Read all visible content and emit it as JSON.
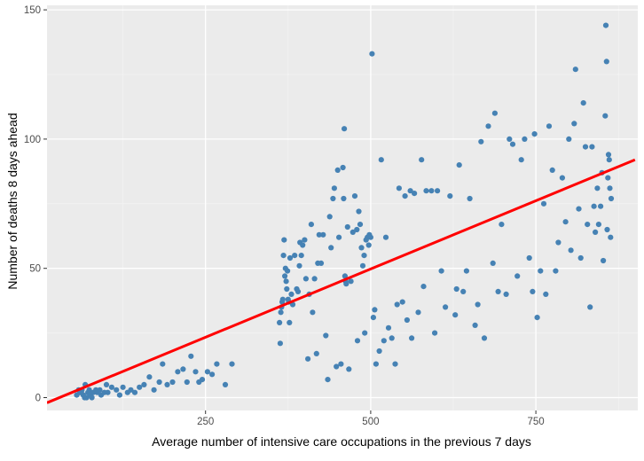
{
  "chart_data": {
    "type": "scatter",
    "title": "",
    "xlabel": "Average number of intensive care occupations in the previous 7 days",
    "ylabel": "Number of deaths 8 days ahead",
    "xlim": [
      10,
      900
    ],
    "ylim": [
      -3,
      150
    ],
    "x_ticks": [
      250,
      500,
      750
    ],
    "y_ticks": [
      0,
      50,
      100,
      150
    ],
    "x_minor_ticks": [
      125,
      375,
      625,
      875
    ],
    "y_minor_ticks": [
      25,
      75,
      125
    ],
    "grid": true,
    "legend": "none",
    "colors": {
      "panel_background": "#EBEBEB",
      "grid_major": "#FFFFFF",
      "grid_minor": "#F4F4F4",
      "points": "#4682B4",
      "fit_line": "#FF0000",
      "axis_text": "#4D4D4D",
      "axis_title": "#000000"
    },
    "fit_line": {
      "type": "linear",
      "points": [
        [
          10,
          -2
        ],
        [
          900,
          92
        ]
      ]
    },
    "series": [
      {
        "values": [
          [
            55,
            1
          ],
          [
            58,
            3
          ],
          [
            60,
            2
          ],
          [
            62,
            2
          ],
          [
            63,
            3
          ],
          [
            65,
            1
          ],
          [
            67,
            0
          ],
          [
            68,
            5
          ],
          [
            70,
            0
          ],
          [
            72,
            2
          ],
          [
            74,
            3
          ],
          [
            76,
            1
          ],
          [
            78,
            0
          ],
          [
            80,
            2
          ],
          [
            84,
            3
          ],
          [
            86,
            2
          ],
          [
            90,
            3
          ],
          [
            92,
            1
          ],
          [
            97,
            2
          ],
          [
            100,
            5
          ],
          [
            102,
            2
          ],
          [
            108,
            4
          ],
          [
            115,
            3
          ],
          [
            120,
            1
          ],
          [
            125,
            4
          ],
          [
            132,
            2
          ],
          [
            137,
            3
          ],
          [
            143,
            2
          ],
          [
            150,
            4
          ],
          [
            157,
            5
          ],
          [
            165,
            8
          ],
          [
            172,
            3
          ],
          [
            180,
            6
          ],
          [
            185,
            13
          ],
          [
            192,
            5
          ],
          [
            200,
            6
          ],
          [
            208,
            10
          ],
          [
            216,
            11
          ],
          [
            222,
            6
          ],
          [
            228,
            16
          ],
          [
            235,
            10
          ],
          [
            240,
            6
          ],
          [
            245,
            7
          ],
          [
            253,
            10
          ],
          [
            260,
            9
          ],
          [
            267,
            13
          ],
          [
            280,
            5
          ],
          [
            290,
            13
          ],
          [
            362,
            29
          ],
          [
            363,
            21
          ],
          [
            364,
            33
          ],
          [
            365,
            35
          ],
          [
            366,
            37
          ],
          [
            367,
            38
          ],
          [
            368,
            55
          ],
          [
            369,
            61
          ],
          [
            370,
            47
          ],
          [
            371,
            50
          ],
          [
            372,
            45
          ],
          [
            373,
            42
          ],
          [
            374,
            49
          ],
          [
            375,
            38
          ],
          [
            376,
            37
          ],
          [
            377,
            29
          ],
          [
            378,
            54
          ],
          [
            380,
            40
          ],
          [
            382,
            36
          ],
          [
            385,
            55
          ],
          [
            388,
            42
          ],
          [
            390,
            41
          ],
          [
            392,
            51
          ],
          [
            393,
            60
          ],
          [
            395,
            55
          ],
          [
            397,
            59
          ],
          [
            400,
            61
          ],
          [
            402,
            46
          ],
          [
            405,
            15
          ],
          [
            407,
            40
          ],
          [
            410,
            67
          ],
          [
            412,
            33
          ],
          [
            415,
            46
          ],
          [
            418,
            17
          ],
          [
            420,
            52
          ],
          [
            422,
            63
          ],
          [
            425,
            52
          ],
          [
            428,
            63
          ],
          [
            432,
            24
          ],
          [
            435,
            7
          ],
          [
            438,
            70
          ],
          [
            440,
            58
          ],
          [
            443,
            77
          ],
          [
            445,
            81
          ],
          [
            448,
            12
          ],
          [
            450,
            88
          ],
          [
            452,
            62
          ],
          [
            455,
            13
          ],
          [
            458,
            89
          ],
          [
            459,
            77
          ],
          [
            460,
            104
          ],
          [
            461,
            47
          ],
          [
            462,
            45
          ],
          [
            463,
            44
          ],
          [
            465,
            66
          ],
          [
            467,
            11
          ],
          [
            470,
            45
          ],
          [
            473,
            64
          ],
          [
            476,
            78
          ],
          [
            479,
            65
          ],
          [
            480,
            22
          ],
          [
            482,
            72
          ],
          [
            484,
            67
          ],
          [
            486,
            58
          ],
          [
            488,
            51
          ],
          [
            490,
            55
          ],
          [
            491,
            25
          ],
          [
            493,
            61
          ],
          [
            495,
            62
          ],
          [
            497,
            59
          ],
          [
            498,
            63
          ],
          [
            500,
            62
          ],
          [
            502,
            133
          ],
          [
            504,
            31
          ],
          [
            506,
            34
          ],
          [
            508,
            13
          ],
          [
            513,
            18
          ],
          [
            516,
            92
          ],
          [
            520,
            22
          ],
          [
            523,
            62
          ],
          [
            527,
            27
          ],
          [
            532,
            23
          ],
          [
            537,
            13
          ],
          [
            540,
            36
          ],
          [
            543,
            81
          ],
          [
            548,
            37
          ],
          [
            552,
            78
          ],
          [
            555,
            30
          ],
          [
            560,
            80
          ],
          [
            562,
            23
          ],
          [
            566,
            79
          ],
          [
            572,
            33
          ],
          [
            577,
            92
          ],
          [
            580,
            43
          ],
          [
            584,
            80
          ],
          [
            592,
            80
          ],
          [
            597,
            25
          ],
          [
            601,
            80
          ],
          [
            607,
            49
          ],
          [
            613,
            35
          ],
          [
            620,
            78
          ],
          [
            628,
            32
          ],
          [
            630,
            42
          ],
          [
            634,
            90
          ],
          [
            640,
            41
          ],
          [
            645,
            49
          ],
          [
            650,
            77
          ],
          [
            658,
            28
          ],
          [
            662,
            36
          ],
          [
            667,
            99
          ],
          [
            672,
            23
          ],
          [
            678,
            105
          ],
          [
            685,
            52
          ],
          [
            688,
            110
          ],
          [
            693,
            41
          ],
          [
            698,
            67
          ],
          [
            705,
            40
          ],
          [
            710,
            100
          ],
          [
            715,
            98
          ],
          [
            722,
            47
          ],
          [
            728,
            92
          ],
          [
            733,
            100
          ],
          [
            740,
            54
          ],
          [
            745,
            41
          ],
          [
            748,
            102
          ],
          [
            752,
            31
          ],
          [
            757,
            49
          ],
          [
            762,
            75
          ],
          [
            765,
            40
          ],
          [
            770,
            105
          ],
          [
            775,
            88
          ],
          [
            780,
            49
          ],
          [
            784,
            60
          ],
          [
            790,
            85
          ],
          [
            795,
            68
          ],
          [
            800,
            100
          ],
          [
            803,
            57
          ],
          [
            808,
            106
          ],
          [
            810,
            127
          ],
          [
            815,
            73
          ],
          [
            818,
            54
          ],
          [
            822,
            114
          ],
          [
            825,
            97
          ],
          [
            828,
            67
          ],
          [
            832,
            35
          ],
          [
            835,
            97
          ],
          [
            838,
            74
          ],
          [
            840,
            64
          ],
          [
            843,
            81
          ],
          [
            845,
            67
          ],
          [
            848,
            74
          ],
          [
            850,
            87
          ],
          [
            852,
            53
          ],
          [
            855,
            109
          ],
          [
            856,
            144
          ],
          [
            857,
            130
          ],
          [
            858,
            65
          ],
          [
            859,
            85
          ],
          [
            860,
            94
          ],
          [
            861,
            92
          ],
          [
            862,
            81
          ],
          [
            863,
            62
          ],
          [
            864,
            77
          ]
        ]
      }
    ]
  }
}
